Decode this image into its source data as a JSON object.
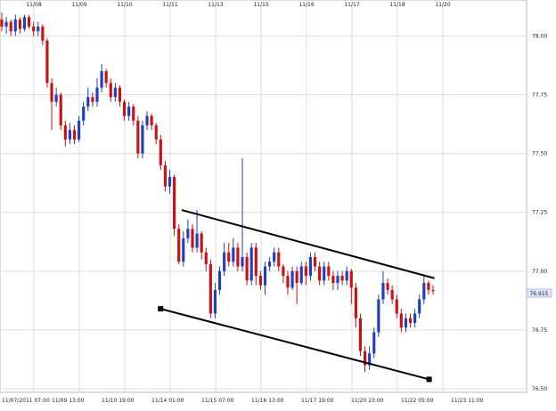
{
  "chart_data": {
    "type": "candlestick",
    "grid": true,
    "up_color": "#1f3fbf",
    "down_color": "#cc1111",
    "top_date_labels": [
      "11/08",
      "11/09",
      "11/10",
      "11/11",
      "11/13",
      "11/15",
      "11/16",
      "11/17",
      "11/18",
      "11/20"
    ],
    "bottom_time_labels": [
      "11/07/2011 07:00",
      "11/09 13:00",
      "11/10 19:00",
      "11/14 01:00",
      "11/15 07:00",
      "11/16 13:00",
      "11/17 19:00",
      "11/20 23:00",
      "11/22 05:00",
      "11/23 11:00"
    ],
    "ylim": [
      76.5,
      78.1
    ],
    "y_ticks": [
      "78.00",
      "77.75",
      "77.50",
      "77.25",
      "77.00",
      "76.75",
      "76.50"
    ],
    "current_price_label": "76.915",
    "current_price": 76.915,
    "trend_lines": [
      {
        "name": "upper",
        "from": [
          0.345,
          77.26
        ],
        "to": [
          0.825,
          76.97
        ]
      },
      {
        "name": "lower",
        "from": [
          0.305,
          76.84
        ],
        "to": [
          0.815,
          76.54
        ]
      }
    ],
    "candles": [
      [
        78.07,
        78.04,
        78.1,
        78.02
      ],
      [
        78.04,
        78.06,
        78.08,
        78.01
      ],
      [
        78.06,
        78.02,
        78.07,
        78.0
      ],
      [
        78.02,
        78.07,
        78.09,
        78.0
      ],
      [
        78.07,
        78.03,
        78.08,
        78.01
      ],
      [
        78.03,
        78.08,
        78.09,
        78.02
      ],
      [
        78.08,
        78.04,
        78.09,
        78.03
      ],
      [
        78.04,
        78.02,
        78.06,
        78.0
      ],
      [
        78.02,
        78.04,
        78.06,
        78.0
      ],
      [
        78.04,
        77.98,
        78.05,
        77.96
      ],
      [
        77.98,
        77.8,
        77.99,
        77.78
      ],
      [
        77.8,
        77.72,
        77.82,
        77.6
      ],
      [
        77.72,
        77.75,
        77.78,
        77.7
      ],
      [
        77.75,
        77.62,
        77.76,
        77.6
      ],
      [
        77.62,
        77.56,
        77.64,
        77.53
      ],
      [
        77.56,
        77.6,
        77.63,
        77.54
      ],
      [
        77.6,
        77.56,
        77.62,
        77.54
      ],
      [
        77.56,
        77.64,
        77.66,
        77.55
      ],
      [
        77.64,
        77.7,
        77.72,
        77.62
      ],
      [
        77.7,
        77.74,
        77.78,
        77.68
      ],
      [
        77.74,
        77.72,
        77.76,
        77.7
      ],
      [
        77.72,
        77.78,
        77.82,
        77.7
      ],
      [
        77.78,
        77.85,
        77.88,
        77.76
      ],
      [
        77.85,
        77.8,
        77.86,
        77.78
      ],
      [
        77.8,
        77.74,
        77.82,
        77.72
      ],
      [
        77.74,
        77.78,
        77.8,
        77.72
      ],
      [
        77.78,
        77.72,
        77.79,
        77.7
      ],
      [
        77.72,
        77.66,
        77.73,
        77.64
      ],
      [
        77.66,
        77.7,
        77.72,
        77.64
      ],
      [
        77.7,
        77.64,
        77.71,
        77.62
      ],
      [
        77.64,
        77.5,
        77.66,
        77.48
      ],
      [
        77.5,
        77.62,
        77.64,
        77.48
      ],
      [
        77.62,
        77.66,
        77.68,
        77.6
      ],
      [
        77.66,
        77.62,
        77.67,
        77.6
      ],
      [
        77.62,
        77.56,
        77.63,
        77.54
      ],
      [
        77.56,
        77.45,
        77.58,
        77.43
      ],
      [
        77.45,
        77.36,
        77.47,
        77.34
      ],
      [
        77.36,
        77.4,
        77.43,
        77.33
      ],
      [
        77.4,
        77.18,
        77.41,
        77.15
      ],
      [
        77.18,
        77.04,
        77.2,
        77.03
      ],
      [
        77.04,
        77.14,
        77.17,
        77.02
      ],
      [
        77.14,
        77.18,
        77.22,
        77.12
      ],
      [
        77.18,
        77.1,
        77.2,
        77.08
      ],
      [
        77.1,
        77.16,
        77.26,
        77.08
      ],
      [
        77.16,
        77.08,
        77.17,
        77.05
      ],
      [
        77.08,
        77.03,
        77.1,
        77.0
      ],
      [
        77.03,
        76.82,
        77.05,
        76.8
      ],
      [
        76.82,
        76.92,
        76.95,
        76.8
      ],
      [
        76.92,
        77.0,
        77.02,
        76.9
      ],
      [
        77.0,
        77.08,
        77.12,
        76.98
      ],
      [
        77.08,
        77.04,
        77.12,
        77.02
      ],
      [
        77.04,
        77.1,
        77.14,
        77.02
      ],
      [
        77.1,
        77.02,
        77.12,
        77.0
      ],
      [
        77.02,
        77.06,
        77.48,
        77.0
      ],
      [
        77.06,
        76.96,
        77.08,
        76.94
      ],
      [
        76.96,
        77.1,
        77.12,
        76.94
      ],
      [
        77.1,
        76.98,
        77.12,
        76.94
      ],
      [
        76.98,
        76.94,
        77.0,
        76.92
      ],
      [
        76.94,
        77.02,
        77.04,
        76.9
      ],
      [
        77.02,
        77.04,
        77.06,
        77.0
      ],
      [
        77.04,
        77.08,
        77.1,
        77.02
      ],
      [
        77.08,
        77.02,
        77.1,
        77.0
      ],
      [
        77.02,
        76.98,
        77.03,
        76.95
      ],
      [
        76.98,
        76.93,
        77.0,
        76.9
      ],
      [
        76.93,
        77.0,
        77.02,
        76.92
      ],
      [
        77.0,
        76.95,
        77.02,
        76.86
      ],
      [
        76.95,
        77.02,
        77.04,
        76.94
      ],
      [
        77.02,
        76.98,
        77.04,
        76.94
      ],
      [
        76.98,
        77.06,
        77.08,
        76.96
      ],
      [
        77.06,
        77.02,
        77.08,
        77.0
      ],
      [
        77.02,
        76.96,
        77.04,
        76.94
      ],
      [
        76.96,
        77.02,
        77.04,
        76.94
      ],
      [
        77.02,
        76.98,
        77.04,
        76.96
      ],
      [
        76.98,
        76.95,
        77.0,
        76.92
      ],
      [
        76.95,
        76.98,
        77.0,
        76.92
      ],
      [
        76.98,
        76.96,
        77.0,
        76.94
      ],
      [
        76.96,
        77.0,
        77.02,
        76.94
      ],
      [
        77.0,
        76.93,
        77.01,
        76.86
      ],
      [
        76.93,
        76.8,
        76.95,
        76.76
      ],
      [
        76.8,
        76.66,
        76.82,
        76.64
      ],
      [
        76.66,
        76.6,
        76.68,
        76.57
      ],
      [
        76.6,
        76.65,
        76.68,
        76.58
      ],
      [
        76.65,
        76.74,
        76.76,
        76.63
      ],
      [
        76.74,
        76.88,
        76.9,
        76.72
      ],
      [
        76.88,
        76.95,
        77.0,
        76.86
      ],
      [
        76.95,
        76.92,
        76.97,
        76.9
      ],
      [
        76.92,
        76.88,
        76.94,
        76.86
      ],
      [
        76.88,
        76.82,
        76.9,
        76.8
      ],
      [
        76.82,
        76.76,
        76.84,
        76.74
      ],
      [
        76.76,
        76.8,
        76.82,
        76.74
      ],
      [
        76.8,
        76.78,
        76.82,
        76.76
      ],
      [
        76.78,
        76.82,
        76.84,
        76.76
      ],
      [
        76.82,
        76.88,
        76.9,
        76.8
      ],
      [
        76.88,
        76.95,
        76.98,
        76.86
      ],
      [
        76.95,
        76.92,
        76.96,
        76.9
      ],
      [
        76.92,
        76.915,
        76.94,
        76.9
      ]
    ]
  }
}
